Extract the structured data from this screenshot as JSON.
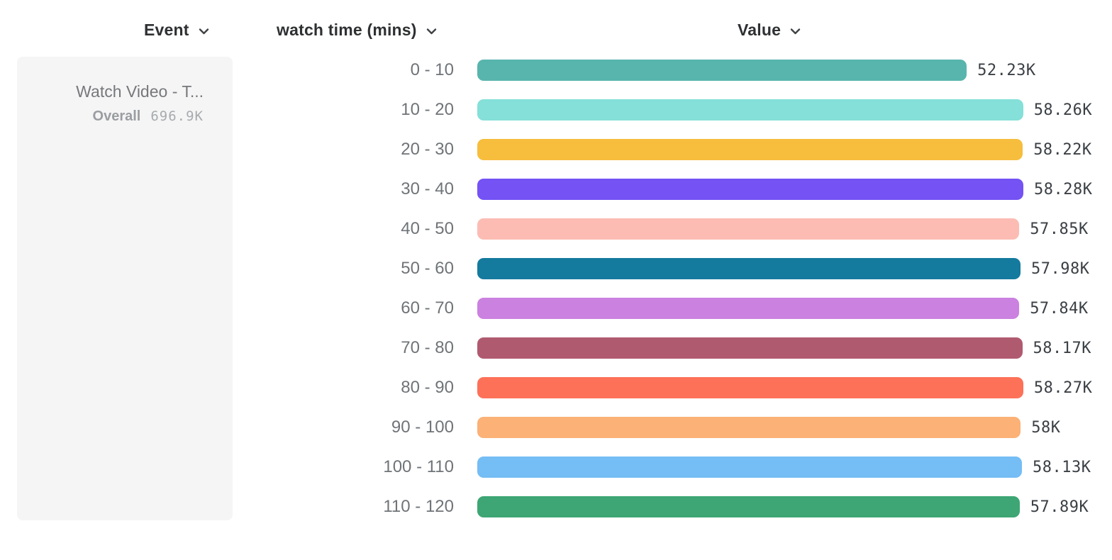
{
  "columns": {
    "event": "Event",
    "breakdown": "watch time (mins)",
    "value": "Value"
  },
  "event_card": {
    "name": "Watch Video - T...",
    "overall_label": "Overall",
    "overall_value": "696.9K"
  },
  "chart_data": {
    "type": "bar",
    "orientation": "horizontal",
    "title": "",
    "xlabel": "Value",
    "ylabel": "watch time (mins)",
    "categories": [
      "0 - 10",
      "10 - 20",
      "20 - 30",
      "30 - 40",
      "40 - 50",
      "50 - 60",
      "60 - 70",
      "70 - 80",
      "80 - 90",
      "90 - 100",
      "100 - 110",
      "110 - 120"
    ],
    "values": [
      52230,
      58260,
      58220,
      58280,
      57850,
      57980,
      57840,
      58170,
      58270,
      58000,
      58130,
      57890
    ],
    "value_labels": [
      "52.23K",
      "58.26K",
      "58.22K",
      "58.28K",
      "57.85K",
      "57.98K",
      "57.84K",
      "58.17K",
      "58.27K",
      "58K",
      "58.13K",
      "57.89K"
    ],
    "colors": [
      "#58b5ad",
      "#84e0d8",
      "#f7bd3d",
      "#7452f4",
      "#fcbcb4",
      "#147a9e",
      "#cb81e0",
      "#b05a70",
      "#fd7158",
      "#fcb177",
      "#75bdf5",
      "#3ea674"
    ],
    "xlim": [
      0,
      58280
    ],
    "grid": false,
    "legend": "none"
  }
}
